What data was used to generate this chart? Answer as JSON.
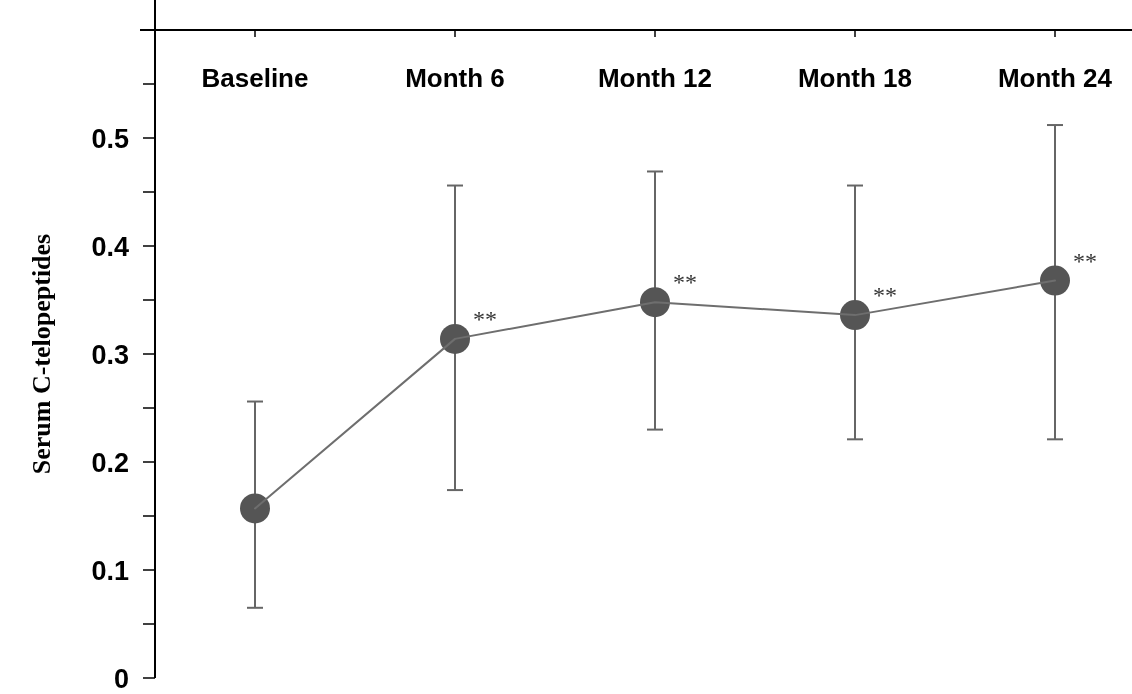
{
  "chart_data": {
    "type": "line",
    "ylabel": "Serum C-telopeptides",
    "categories": [
      "Baseline",
      "Month 6",
      "Month 12",
      "Month 18",
      "Month 24"
    ],
    "series": [
      {
        "color": "#555555",
        "values": [
          0.157,
          0.314,
          0.348,
          0.336,
          0.368
        ],
        "errors": [
          [
            0.065,
            0.256
          ],
          [
            0.174,
            0.456
          ],
          [
            0.23,
            0.469
          ],
          [
            0.221,
            0.456
          ],
          [
            0.221,
            0.512
          ]
        ]
      }
    ],
    "ylim": [
      0,
      0.6
    ],
    "yticks": [
      0,
      {
        "value": 0.05,
        "label": null
      },
      0.1,
      {
        "value": 0.15,
        "label": null
      },
      0.2,
      {
        "value": 0.25,
        "label": null
      },
      0.3,
      {
        "value": 0.35,
        "label": null
      },
      0.4,
      {
        "value": 0.45,
        "label": null
      },
      0.5,
      {
        "value": 0.55,
        "label": null
      }
    ],
    "marker": "circle",
    "line_style": "solid",
    "grid": false,
    "annotations": [
      {
        "text": "**",
        "x": "Month 6",
        "y": 0.314
      },
      {
        "text": "**",
        "x": "Month 12",
        "y": 0.348
      },
      {
        "text": "**",
        "x": "Month 18",
        "y": 0.336
      },
      {
        "text": "**",
        "x": "Month 24",
        "y": 0.368
      }
    ]
  }
}
